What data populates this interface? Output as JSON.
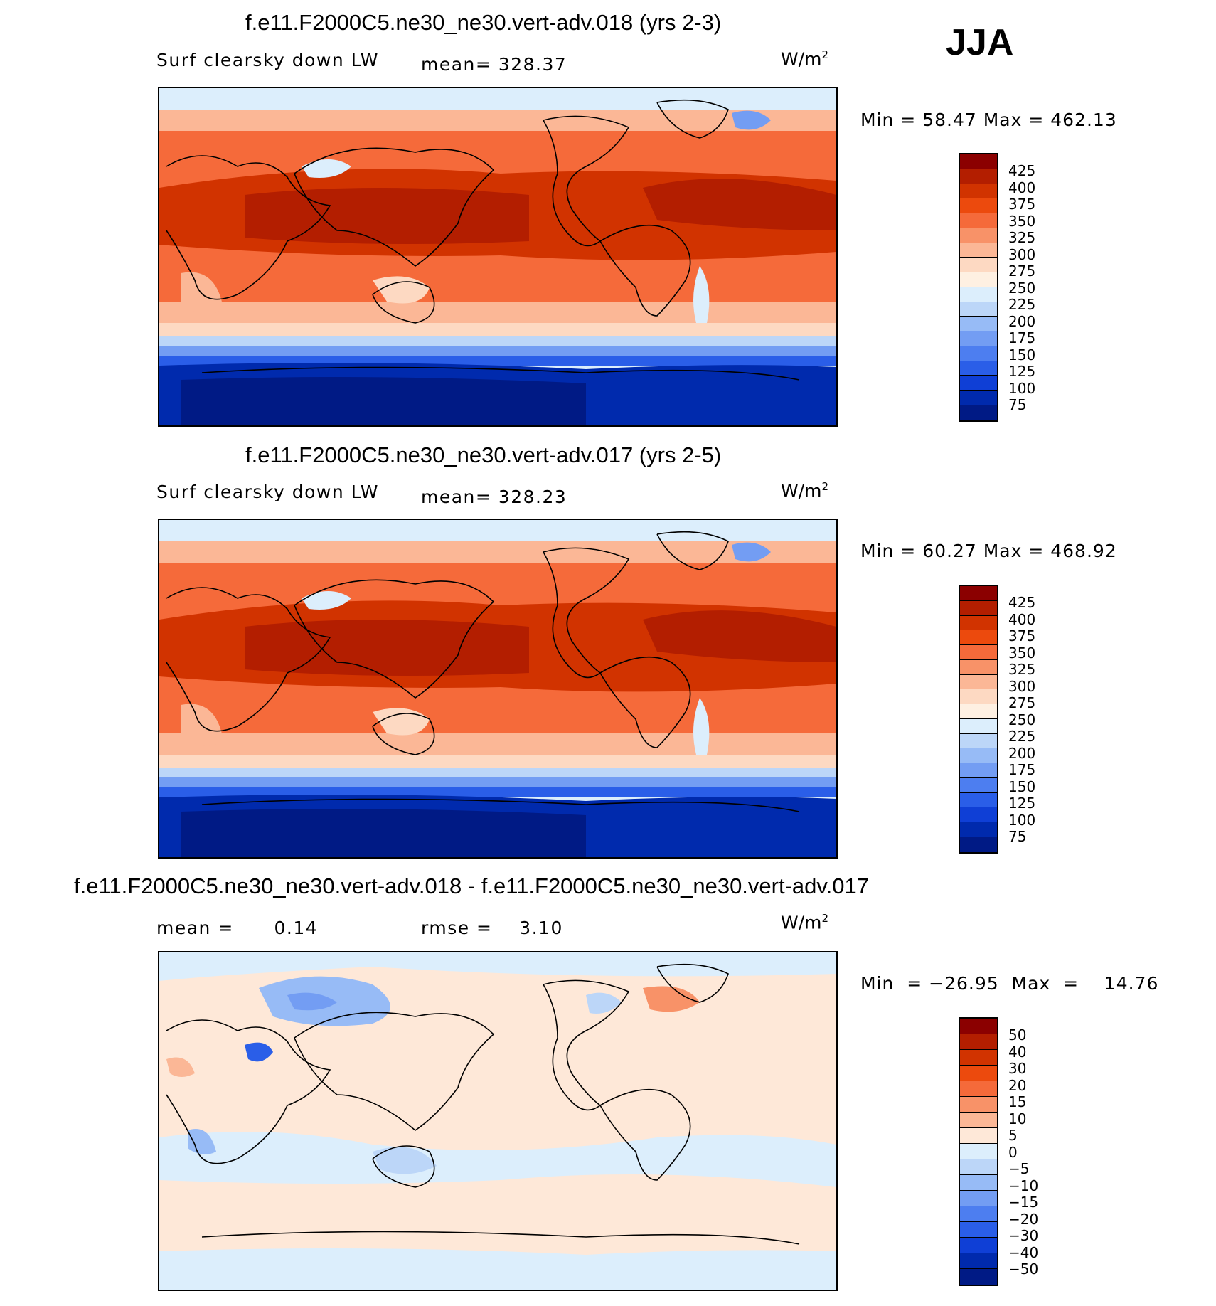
{
  "season": "JJA",
  "panels": [
    {
      "title": "f.e11.F2000C5.ne30_ne30.vert-adv.018 (yrs 2-3)",
      "left_label": "Surf clearsky down LW",
      "stat_label": "mean=",
      "stat_value": "328.37",
      "units": "W/m",
      "units_exp": "2",
      "minmax": "Min =   58.47  Max  =  462.13"
    },
    {
      "title": "f.e11.F2000C5.ne30_ne30.vert-adv.017 (yrs 2-5)",
      "left_label": "Surf clearsky down LW",
      "stat_label": "mean=",
      "stat_value": "328.23",
      "units": "W/m",
      "units_exp": "2",
      "minmax": "Min =   60.27  Max  =  468.92"
    },
    {
      "title": "f.e11.F2000C5.ne30_ne30.vert-adv.018 - f.e11.F2000C5.ne30_ne30.vert-adv.017",
      "left_label": "mean =      0.14",
      "stat_label": "rmse =",
      "stat_value": "3.10",
      "units": "W/m",
      "units_exp": "2",
      "minmax": "Min  = −26.95  Max  =    14.76"
    }
  ],
  "colorbars": {
    "absolute": {
      "labels": [
        "425",
        "400",
        "375",
        "350",
        "325",
        "300",
        "275",
        "250",
        "225",
        "200",
        "175",
        "150",
        "125",
        "100",
        "75"
      ],
      "colors": [
        "#8b0000",
        "#b31e00",
        "#d13300",
        "#ec4a0d",
        "#f56a3a",
        "#f89268",
        "#fbb796",
        "#fdd9c2",
        "#fef0e2",
        "#dceefc",
        "#bcd6f8",
        "#97bbf6",
        "#739df3",
        "#4d7ef0",
        "#2a5ee8",
        "#0f3fd6",
        "#002aad",
        "#001a85"
      ]
    },
    "difference": {
      "labels": [
        "50",
        "40",
        "30",
        "20",
        "15",
        "10",
        "5",
        "0",
        "−5",
        "−10",
        "−15",
        "−20",
        "−30",
        "−40",
        "−50"
      ],
      "colors": [
        "#8b0000",
        "#b31e00",
        "#d13300",
        "#ec4a0d",
        "#f56a3a",
        "#f89268",
        "#fbb796",
        "#fee8d8",
        "#dceefc",
        "#bcd6f8",
        "#97bbf6",
        "#739df3",
        "#4d7ef0",
        "#2a5ee8",
        "#0f3fd6",
        "#002aad",
        "#001a85"
      ]
    }
  }
}
